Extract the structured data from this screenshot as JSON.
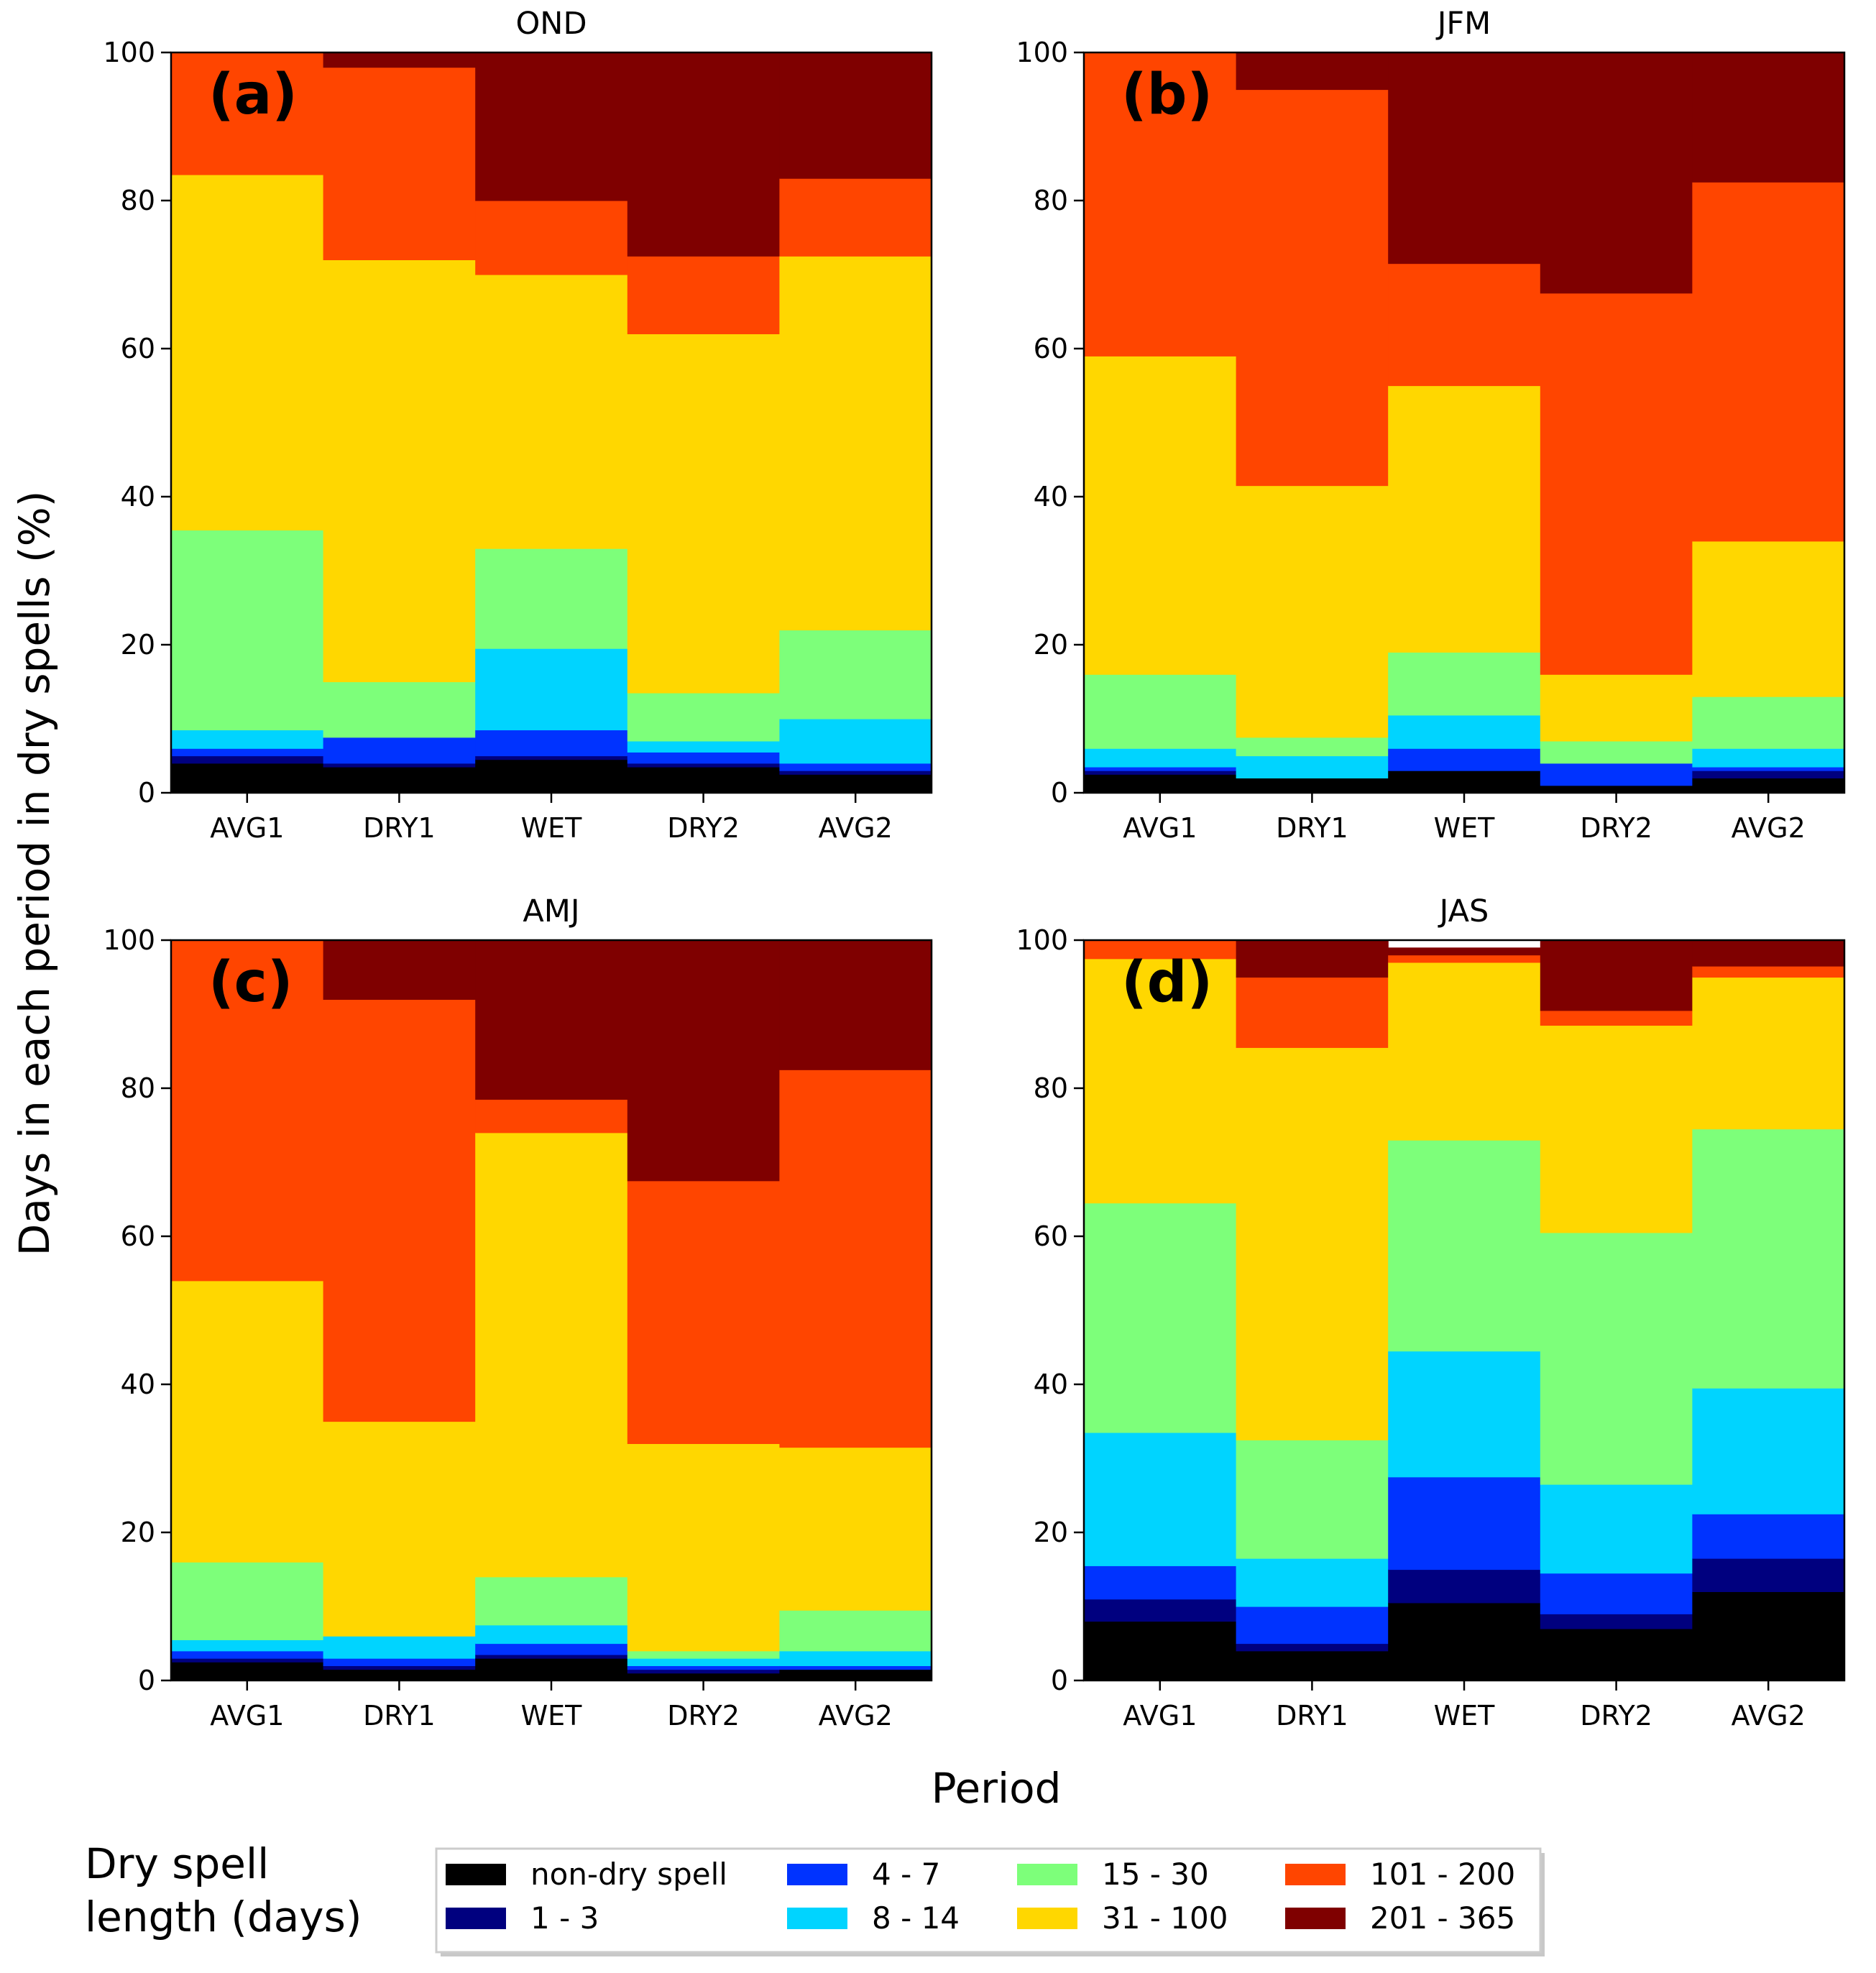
{
  "chart_data": {
    "type": "bar",
    "stacked": true,
    "ylabel": "Days in each period in dry spells (%)",
    "xlabel": "Period",
    "ylim": [
      0,
      100
    ],
    "yticks": [
      0,
      20,
      40,
      60,
      80,
      100
    ],
    "categories": [
      "AVG1",
      "DRY1",
      "WET",
      "DRY2",
      "AVG2"
    ],
    "legend": {
      "title": "Dry spell length (days)",
      "title_lines": [
        "Dry spell",
        "length (days)"
      ],
      "placement": "bottom",
      "entries": [
        {
          "label": "non-dry spell",
          "color": "#000000"
        },
        {
          "label": "1 - 3",
          "color": "#00007f"
        },
        {
          "label": "4 - 7",
          "color": "#0033ff"
        },
        {
          "label": "8 - 14",
          "color": "#00d4ff"
        },
        {
          "label": "15 - 30",
          "color": "#7dff7a"
        },
        {
          "label": "31 - 100",
          "color": "#ffd700"
        },
        {
          "label": "101 - 200",
          "color": "#ff4500"
        },
        {
          "label": "201 - 365",
          "color": "#7f0000"
        }
      ]
    },
    "panels": [
      {
        "title": "OND",
        "letter": "(a)",
        "series": [
          {
            "name": "non-dry spell",
            "values": [
              4,
              3.5,
              4.5,
              3.5,
              2.5
            ]
          },
          {
            "name": "1 - 3",
            "values": [
              1,
              0.5,
              0.5,
              0.5,
              0.5
            ]
          },
          {
            "name": "4 - 7",
            "values": [
              1,
              3.5,
              3.5,
              1.5,
              1
            ]
          },
          {
            "name": "8 - 14",
            "values": [
              2.5,
              0,
              11,
              1.5,
              6
            ]
          },
          {
            "name": "15 - 30",
            "values": [
              27,
              7.5,
              13.5,
              6.5,
              12
            ]
          },
          {
            "name": "31 - 100",
            "values": [
              48,
              57,
              37,
              48.5,
              50.5
            ]
          },
          {
            "name": "101 - 200",
            "values": [
              16.5,
              26,
              10,
              10.5,
              10.5
            ]
          },
          {
            "name": "201 - 365",
            "values": [
              0,
              2,
              20,
              27.5,
              17
            ]
          }
        ]
      },
      {
        "title": "JFM",
        "letter": "(b)",
        "series": [
          {
            "name": "non-dry spell",
            "values": [
              2.5,
              2,
              3,
              1,
              2
            ]
          },
          {
            "name": "1 - 3",
            "values": [
              0.5,
              0,
              0,
              0,
              1
            ]
          },
          {
            "name": "4 - 7",
            "values": [
              0.5,
              0,
              3,
              3,
              0.5
            ]
          },
          {
            "name": "8 - 14",
            "values": [
              2.5,
              3,
              4.5,
              0,
              2.5
            ]
          },
          {
            "name": "15 - 30",
            "values": [
              10,
              2.5,
              8.5,
              3,
              7
            ]
          },
          {
            "name": "31 - 100",
            "values": [
              43,
              34,
              36,
              9,
              21
            ]
          },
          {
            "name": "101 - 200",
            "values": [
              41,
              53.5,
              16.5,
              51.5,
              48.5
            ]
          },
          {
            "name": "201 - 365",
            "values": [
              0,
              5,
              28.5,
              32.5,
              17.5
            ]
          }
        ]
      },
      {
        "title": "AMJ",
        "letter": "(c)",
        "series": [
          {
            "name": "non-dry spell",
            "values": [
              2.5,
              1.5,
              3,
              1,
              1.5
            ]
          },
          {
            "name": "1 - 3",
            "values": [
              0.5,
              0.5,
              0.5,
              0.5,
              0
            ]
          },
          {
            "name": "4 - 7",
            "values": [
              1,
              1,
              1.5,
              0.5,
              0.5
            ]
          },
          {
            "name": "8 - 14",
            "values": [
              1.5,
              3,
              2.5,
              1,
              2
            ]
          },
          {
            "name": "15 - 30",
            "values": [
              10.5,
              0,
              6.5,
              1,
              5.5
            ]
          },
          {
            "name": "31 - 100",
            "values": [
              38,
              29,
              60,
              28,
              22
            ]
          },
          {
            "name": "101 - 200",
            "values": [
              46,
              57,
              4.5,
              35.5,
              51
            ]
          },
          {
            "name": "201 - 365",
            "values": [
              0,
              8,
              21.5,
              32.5,
              17.5
            ]
          }
        ]
      },
      {
        "title": "JAS",
        "letter": "(d)",
        "series": [
          {
            "name": "non-dry spell",
            "values": [
              8,
              4,
              10.5,
              7,
              12
            ]
          },
          {
            "name": "1 - 3",
            "values": [
              3,
              1,
              4.5,
              2,
              4.5
            ]
          },
          {
            "name": "4 - 7",
            "values": [
              4.5,
              5,
              12.5,
              5.5,
              6
            ]
          },
          {
            "name": "8 - 14",
            "values": [
              18,
              6.5,
              17,
              12,
              17
            ]
          },
          {
            "name": "15 - 30",
            "values": [
              31,
              16,
              28.5,
              34,
              35
            ]
          },
          {
            "name": "31 - 100",
            "values": [
              33,
              53,
              24,
              28,
              20.5
            ]
          },
          {
            "name": "101 - 200",
            "values": [
              2.5,
              9.5,
              1,
              2,
              1.5
            ]
          },
          {
            "name": "201 - 365",
            "values": [
              0,
              5,
              1,
              9.5,
              3.5
            ]
          }
        ]
      }
    ]
  }
}
